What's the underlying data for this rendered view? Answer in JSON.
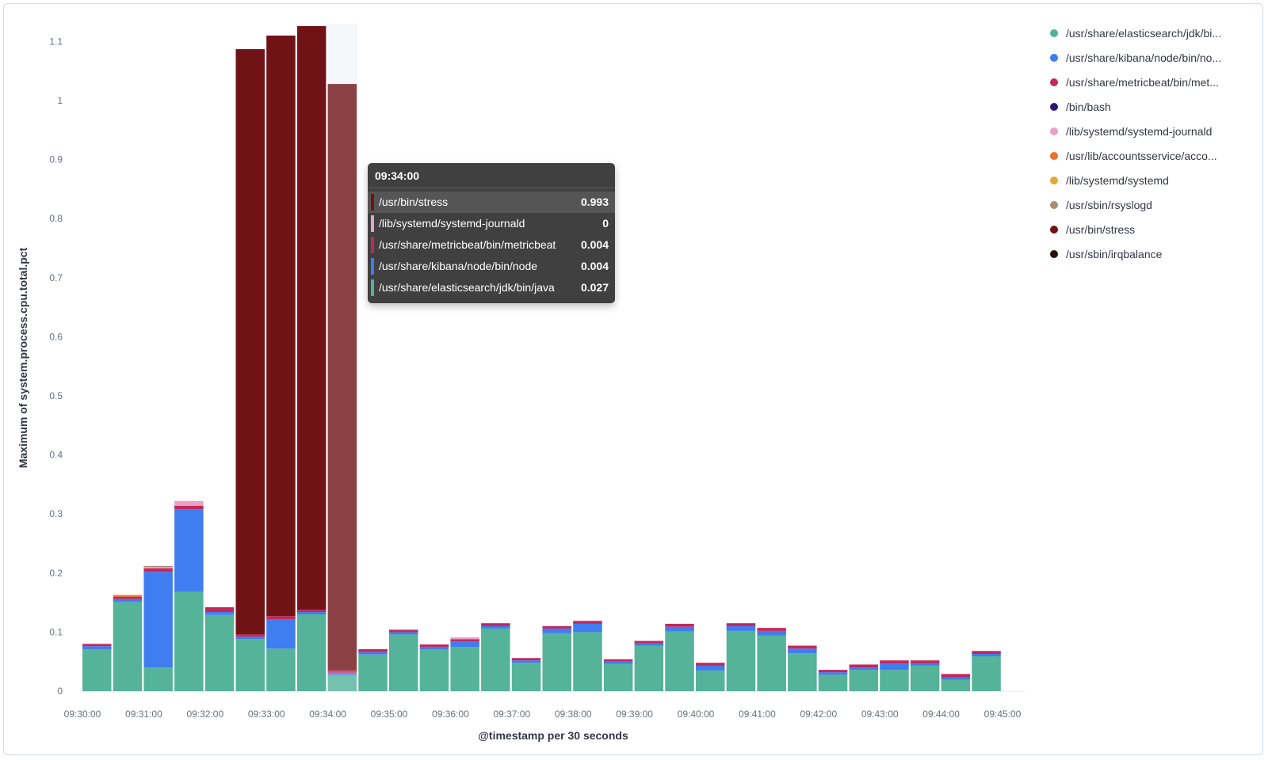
{
  "chart_data": {
    "type": "bar",
    "stacked": true,
    "xlabel": "@timestamp per 30 seconds",
    "ylabel": "Maximum of system.process.cpu.total.pct",
    "ylim": [
      0,
      1.13
    ],
    "yticks": [
      "0",
      "0.1",
      "0.2",
      "0.3",
      "0.4",
      "0.5",
      "0.6",
      "0.7",
      "0.8",
      "0.9",
      "1",
      "1.1"
    ],
    "xtick_labels": [
      "09:30:00",
      "09:31:00",
      "09:32:00",
      "09:33:00",
      "09:34:00",
      "09:35:00",
      "09:36:00",
      "09:37:00",
      "09:38:00",
      "09:39:00",
      "09:40:00",
      "09:41:00",
      "09:42:00",
      "09:43:00",
      "09:44:00",
      "09:45:00"
    ],
    "categories": [
      "09:30:00",
      "09:30:30",
      "09:31:00",
      "09:31:30",
      "09:32:00",
      "09:32:30",
      "09:33:00",
      "09:33:30",
      "09:34:00",
      "09:34:30",
      "09:35:00",
      "09:35:30",
      "09:36:00",
      "09:36:30",
      "09:37:00",
      "09:37:30",
      "09:38:00",
      "09:38:30",
      "09:39:00",
      "09:39:30",
      "09:40:00",
      "09:40:30",
      "09:41:00",
      "09:41:30",
      "09:42:00",
      "09:42:30",
      "09:43:00",
      "09:43:30",
      "09:44:00",
      "09:44:30",
      "09:45:00"
    ],
    "legend_position": "right",
    "highlighted_category": "09:34:00",
    "series": [
      {
        "name": "/usr/share/elasticsearch/jdk/bin/java",
        "color": "#54b399",
        "values": [
          0.071,
          0.151,
          0.04,
          0.168,
          0.129,
          0.088,
          0.072,
          0.13,
          0.027,
          0.062,
          0.096,
          0.071,
          0.075,
          0.106,
          0.048,
          0.098,
          0.1,
          0.046,
          0.077,
          0.101,
          0.035,
          0.102,
          0.094,
          0.064,
          0.028,
          0.036,
          0.036,
          0.043,
          0.019,
          0.059,
          0
        ]
      },
      {
        "name": "/usr/share/kibana/node/bin/node",
        "color": "#3f7df0",
        "values": [
          0.005,
          0.005,
          0.162,
          0.14,
          0.005,
          0.004,
          0.05,
          0.004,
          0.004,
          0.004,
          0.004,
          0.004,
          0.009,
          0.004,
          0.004,
          0.008,
          0.014,
          0.004,
          0.004,
          0.008,
          0.008,
          0.008,
          0.008,
          0.008,
          0.004,
          0.004,
          0.011,
          0.004,
          0.004,
          0.004,
          0
        ]
      },
      {
        "name": "/usr/share/metricbeat/bin/metricbeat",
        "color": "#c3285b",
        "values": [
          0.004,
          0.004,
          0.006,
          0.006,
          0.008,
          0.004,
          0.005,
          0.004,
          0.004,
          0.005,
          0.004,
          0.004,
          0.004,
          0.005,
          0.004,
          0.004,
          0.005,
          0.004,
          0.004,
          0.005,
          0.005,
          0.005,
          0.005,
          0.005,
          0.004,
          0.005,
          0.005,
          0.005,
          0.006,
          0.005,
          0
        ]
      },
      {
        "name": "/bin/bash",
        "color": "#2d1576",
        "values": [
          0,
          0,
          0,
          0,
          0,
          0,
          0,
          0,
          0,
          0,
          0,
          0,
          0,
          0,
          0,
          0,
          0,
          0,
          0,
          0,
          0,
          0,
          0,
          0,
          0,
          0,
          0,
          0,
          0,
          0,
          0
        ]
      },
      {
        "name": "/lib/systemd/systemd-journald",
        "color": "#e8a2c8",
        "values": [
          0,
          0,
          0.002,
          0.008,
          0,
          0,
          0,
          0,
          0,
          0,
          0,
          0,
          0.003,
          0,
          0,
          0,
          0,
          0,
          0,
          0,
          0,
          0,
          0,
          0,
          0,
          0,
          0,
          0,
          0,
          0,
          0
        ]
      },
      {
        "name": "/usr/lib/accountsservice/accounts-daemon",
        "color": "#ef6f2d",
        "values": [
          0,
          0.002,
          0,
          0,
          0,
          0,
          0,
          0,
          0,
          0,
          0,
          0,
          0,
          0,
          0,
          0,
          0,
          0,
          0,
          0,
          0,
          0,
          0,
          0,
          0,
          0,
          0,
          0,
          0,
          0,
          0
        ]
      },
      {
        "name": "/lib/systemd/systemd",
        "color": "#e1a53a",
        "values": [
          0,
          0.001,
          0,
          0,
          0,
          0,
          0,
          0,
          0,
          0,
          0,
          0,
          0,
          0,
          0,
          0,
          0,
          0,
          0,
          0,
          0,
          0,
          0,
          0,
          0,
          0,
          0,
          0,
          0,
          0,
          0
        ]
      },
      {
        "name": "/usr/sbin/rsyslogd",
        "color": "#a98e76",
        "values": [
          0,
          0,
          0.002,
          0,
          0,
          0,
          0,
          0,
          0,
          0,
          0,
          0,
          0,
          0,
          0,
          0,
          0,
          0,
          0,
          0,
          0,
          0,
          0,
          0,
          0,
          0,
          0,
          0,
          0,
          0,
          0
        ]
      },
      {
        "name": "/usr/bin/stress",
        "color": "#701316",
        "values": [
          0,
          0,
          0,
          0,
          0,
          0.991,
          0.983,
          0.988,
          0.993,
          0,
          0,
          0,
          0,
          0,
          0,
          0,
          0,
          0,
          0,
          0,
          0,
          0,
          0,
          0,
          0,
          0,
          0,
          0,
          0,
          0,
          0
        ]
      },
      {
        "name": "/usr/sbin/irqbalance",
        "color": "#2a0e0b",
        "values": [
          0,
          0,
          0,
          0,
          0,
          0,
          0,
          0,
          0,
          0,
          0,
          0,
          0,
          0,
          0,
          0,
          0,
          0,
          0,
          0,
          0,
          0,
          0,
          0,
          0,
          0,
          0,
          0,
          0,
          0,
          0
        ]
      }
    ]
  },
  "legend": {
    "items": [
      {
        "label": "/usr/share/elasticsearch/jdk/bi...",
        "color": "#54b399"
      },
      {
        "label": "/usr/share/kibana/node/bin/no...",
        "color": "#3f7df0"
      },
      {
        "label": "/usr/share/metricbeat/bin/met...",
        "color": "#c3285b"
      },
      {
        "label": "/bin/bash",
        "color": "#2d1576"
      },
      {
        "label": "/lib/systemd/systemd-journald",
        "color": "#e8a2c8"
      },
      {
        "label": "/usr/lib/accountsservice/acco...",
        "color": "#ef6f2d"
      },
      {
        "label": "/lib/systemd/systemd",
        "color": "#e1a53a"
      },
      {
        "label": "/usr/sbin/rsyslogd",
        "color": "#a98e76"
      },
      {
        "label": "/usr/bin/stress",
        "color": "#701316"
      },
      {
        "label": "/usr/sbin/irqbalance",
        "color": "#2a0e0b"
      }
    ]
  },
  "tooltip": {
    "title": "09:34:00",
    "rows": [
      {
        "label": "/usr/bin/stress",
        "value": "0.993",
        "color": "#701316",
        "highlighted": true
      },
      {
        "label": "/lib/systemd/systemd-journald",
        "value": "0",
        "color": "#e8a2c8",
        "highlighted": false
      },
      {
        "label": "/usr/share/metricbeat/bin/metricbeat",
        "value": "0.004",
        "color": "#c3285b",
        "highlighted": false
      },
      {
        "label": "/usr/share/kibana/node/bin/node",
        "value": "0.004",
        "color": "#3f7df0",
        "highlighted": false
      },
      {
        "label": "/usr/share/elasticsearch/jdk/bin/java",
        "value": "0.027",
        "color": "#54b399",
        "highlighted": false
      }
    ]
  }
}
